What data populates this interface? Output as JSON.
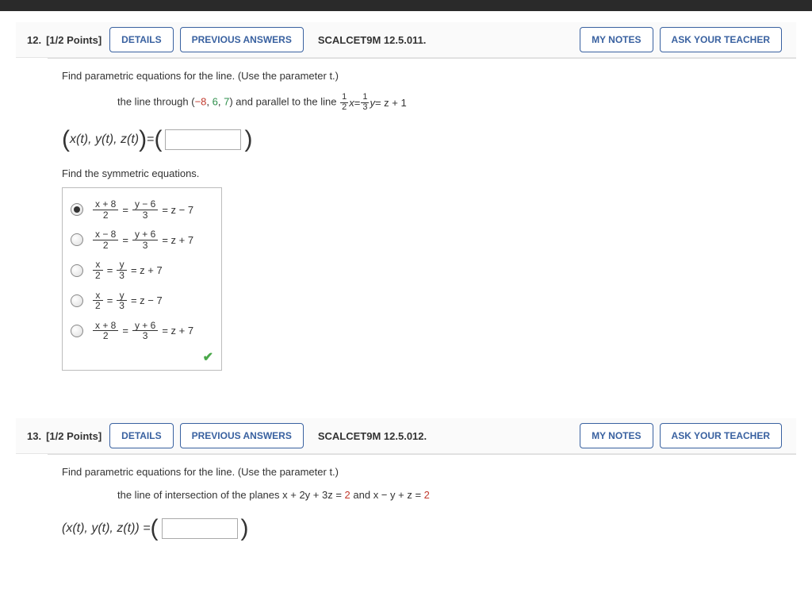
{
  "colors": {
    "topbar": "#2a2a2a",
    "button_border": "#3961a0",
    "button_text": "#3961a0",
    "negative": "#c23a2e",
    "positive": "#2e8f4c",
    "check": "#4aa84a",
    "mc_border": "#bcbcbc"
  },
  "buttons": {
    "details": "DETAILS",
    "previous": "PREVIOUS ANSWERS",
    "notes": "MY NOTES",
    "ask": "ASK YOUR TEACHER"
  },
  "q12": {
    "number": "12.",
    "points": "[1/2 Points]",
    "reference": "SCALCET9M 12.5.011.",
    "prompt": "Find parametric equations for the line. (Use the parameter t.)",
    "subprompt_pre": "the line through (",
    "point_x": "−8",
    "point_sep1": ", ",
    "point_y": "6",
    "point_sep2": ", ",
    "point_z": "7",
    "subprompt_mid": ") and parallel to the line ",
    "pline_f1_n": "1",
    "pline_f1_d": "2",
    "pline_var1": "x",
    "pline_eq1": " = ",
    "pline_f2_n": "1",
    "pline_f2_d": "3",
    "pline_var2": "y",
    "pline_tail": " = z + 1",
    "answer_lhs": "x(t), y(t), z(t)",
    "answer_eq": " = ",
    "section2": "Find the symmetric equations.",
    "mc": {
      "selected": 0,
      "opts": [
        {
          "f1n": "x + 8",
          "f1d": "2",
          "f2n": "y − 6",
          "f2d": "3",
          "tail": "= z − 7"
        },
        {
          "f1n": "x − 8",
          "f1d": "2",
          "f2n": "y + 6",
          "f2d": "3",
          "tail": "= z + 7"
        },
        {
          "f1n": "x",
          "f1d": "2",
          "f2n": "y",
          "f2d": "3",
          "tail": "= z + 7"
        },
        {
          "f1n": "x",
          "f1d": "2",
          "f2n": "y",
          "f2d": "3",
          "tail": "= z − 7"
        },
        {
          "f1n": "x + 8",
          "f1d": "2",
          "f2n": "y + 6",
          "f2d": "3",
          "tail": "= z + 7"
        }
      ]
    },
    "checkmark": "✔"
  },
  "q13": {
    "number": "13.",
    "points": "[1/2 Points]",
    "reference": "SCALCET9M 12.5.012.",
    "prompt": "Find parametric equations for the line. (Use the parameter t.)",
    "subprompt_pre": "the line of intersection of the planes x + 2y + 3z = ",
    "rhs1": "2",
    "subprompt_mid": " and x − y + z = ",
    "rhs2": "2",
    "answer_lhs": "(x(t), y(t), z(t)) = "
  }
}
